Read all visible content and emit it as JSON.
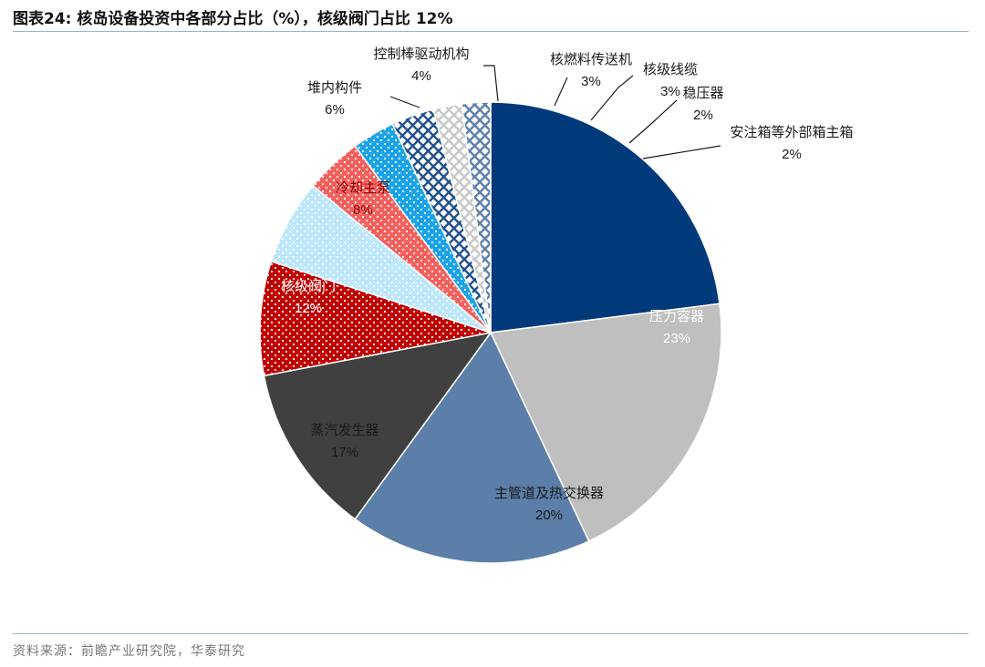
{
  "header": {
    "title": "图表24:  核岛设备投资中各部分占比（%），核级阀门占比 12%"
  },
  "chart_data": {
    "type": "pie",
    "title": "核岛设备投资中各部分占比（%），核级阀门占比 12%",
    "unit": "%",
    "slices": [
      {
        "label": "压力容器",
        "value": 23,
        "display": "23%",
        "color": "#003a7a",
        "pattern": "solid"
      },
      {
        "label": "主管道及热交换器",
        "value": 20,
        "display": "20%",
        "color": "#bfbfbf",
        "pattern": "solid"
      },
      {
        "label": "蒸汽发生器",
        "value": 17,
        "display": "17%",
        "color": "#5b7fa8",
        "pattern": "solid"
      },
      {
        "label": "核级阀门",
        "value": 12,
        "display": "12%",
        "color": "#404040",
        "pattern": "solid"
      },
      {
        "label": "冷却主泵",
        "value": 8,
        "display": "8%",
        "color": "#c00000",
        "pattern": "dots"
      },
      {
        "label": "堆内构件",
        "value": 6,
        "display": "6%",
        "color": "#bde7fb",
        "pattern": "dots"
      },
      {
        "label": "控制棒驱动机构",
        "value": 4,
        "display": "4%",
        "color": "#f4605c",
        "pattern": "dots"
      },
      {
        "label": "核燃料传送机",
        "value": 3,
        "display": "3%",
        "color": "#1aa3e8",
        "pattern": "dots"
      },
      {
        "label": "核级线缆",
        "value": 3,
        "display": "3%",
        "color": "#1f4f8c",
        "pattern": "grid"
      },
      {
        "label": "稳压器",
        "value": 2,
        "display": "2%",
        "color": "#c8c8c8",
        "pattern": "grid"
      },
      {
        "label": "安注箱等外部箱主箱",
        "value": 2,
        "display": "2%",
        "color": "#5b7fa8",
        "pattern": "grid"
      }
    ]
  },
  "footer": {
    "source": "资料来源：前瞻产业研究院，华泰研究"
  }
}
